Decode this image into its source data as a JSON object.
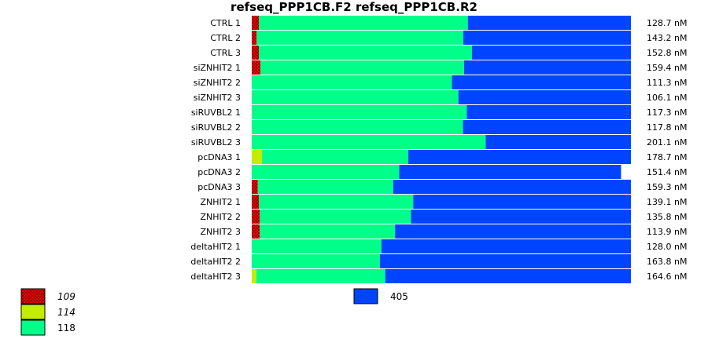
{
  "chart_data": {
    "type": "bar",
    "title": "refseq_PPP1CB.F2  refseq_PPP1CB.R2",
    "stacked": true,
    "normalized": true,
    "orientation": "horizontal",
    "categories": [
      "CTRL 1",
      "CTRL 2",
      "CTRL 3",
      "siZNHIT2 1",
      "siZNHIT2 2",
      "siZNHIT2 3",
      "siRUVBL2 1",
      "siRUVBL2 2",
      "siRUVBL2 3",
      "pcDNA3 1",
      "pcDNA3 2",
      "pcDNA3 3",
      "ZNHIT2 1",
      "ZNHIT2 2",
      "ZNHIT2 3",
      "deltaHIT2 1",
      "deltaHIT2 2",
      "deltaHIT2 3"
    ],
    "concentrations": [
      "128.7 nM",
      "143.2 nM",
      "152.8 nM",
      "159.4 nM",
      "111.3 nM",
      "106.1 nM",
      "117.3 nM",
      "117.8 nM",
      "201.1 nM",
      "178.7 nM",
      "151.4 nM",
      "159.3 nM",
      "139.1 nM",
      "135.8 nM",
      "113.9 nM",
      "128.0 nM",
      "163.8 nM",
      "164.6 nM"
    ],
    "series": [
      {
        "name": "109",
        "color": "#ff0000",
        "pattern": "checker-dark",
        "italic": true,
        "values": [
          0.019,
          0.013,
          0.019,
          0.023,
          0.0,
          0.0,
          0.0,
          0.0,
          0.0,
          0.0,
          0.0,
          0.016,
          0.019,
          0.021,
          0.021,
          0.0,
          0.0,
          0.0
        ]
      },
      {
        "name": "114",
        "color": "#aaff00",
        "pattern": "checker-yellow",
        "italic": true,
        "values": [
          0.0,
          0.0,
          0.0,
          0.0,
          0.0,
          0.0,
          0.0,
          0.0,
          0.0,
          0.027,
          0.0,
          0.0,
          0.0,
          0.0,
          0.0,
          0.0,
          0.0,
          0.012
        ]
      },
      {
        "name": "118",
        "color": "#00ff88",
        "pattern": "solid",
        "italic": false,
        "values": [
          0.551,
          0.545,
          0.562,
          0.537,
          0.528,
          0.545,
          0.567,
          0.557,
          0.617,
          0.386,
          0.389,
          0.357,
          0.407,
          0.399,
          0.357,
          0.342,
          0.338,
          0.34
        ]
      },
      {
        "name": "405",
        "color": "#0044ff",
        "pattern": "solid",
        "italic": false,
        "values": [
          0.43,
          0.442,
          0.419,
          0.44,
          0.472,
          0.455,
          0.433,
          0.443,
          0.383,
          0.587,
          0.585,
          0.627,
          0.574,
          0.58,
          0.622,
          0.658,
          0.662,
          0.648
        ]
      }
    ],
    "xlim": [
      0,
      1
    ],
    "legend_position": "bottom"
  }
}
